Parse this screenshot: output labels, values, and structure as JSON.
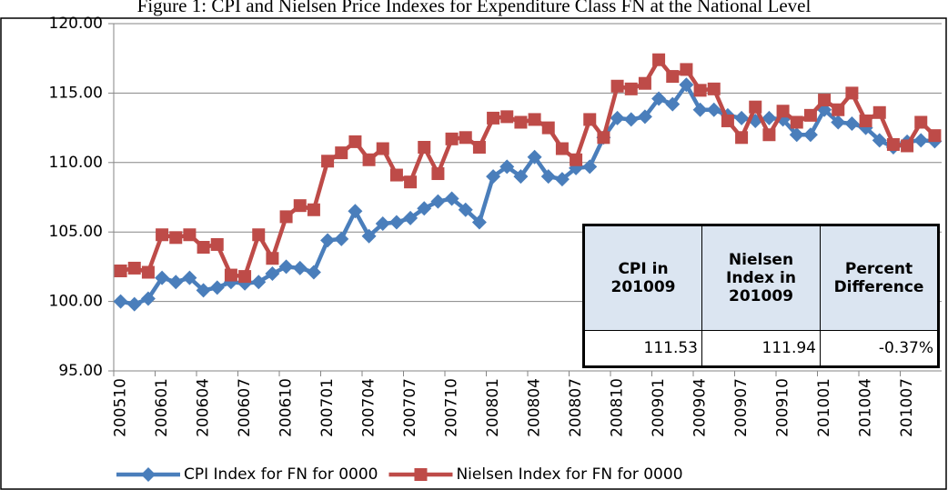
{
  "chart_data": {
    "type": "line",
    "title": "Figure 1: CPI and Nielsen Price Indexes for Expenditure Class FN at the National Level",
    "categories": [
      "200510",
      null,
      null,
      "200601",
      null,
      null,
      "200604",
      null,
      null,
      "200607",
      null,
      null,
      "200610",
      null,
      null,
      "200701",
      null,
      null,
      "200704",
      null,
      null,
      "200707",
      null,
      null,
      "200710",
      null,
      null,
      "200801",
      null,
      null,
      "200804",
      null,
      null,
      "200807",
      null,
      null,
      "200810",
      null,
      null,
      "200901",
      null,
      null,
      "200904",
      null,
      null,
      "200907",
      null,
      null,
      "200910",
      null,
      null,
      "201001",
      null,
      null,
      "201004",
      null,
      null,
      "201007",
      null,
      null
    ],
    "series": [
      {
        "name": "CPI Index for FN for 0000",
        "color": "#4a7ebb",
        "marker": "diamond",
        "values": [
          100.0,
          99.8,
          100.2,
          101.7,
          101.4,
          101.7,
          100.8,
          101.0,
          101.4,
          101.3,
          101.4,
          102.0,
          102.5,
          102.4,
          102.1,
          104.4,
          104.5,
          106.5,
          104.7,
          105.6,
          105.7,
          106.0,
          106.7,
          107.2,
          107.4,
          106.6,
          105.7,
          109.0,
          109.7,
          109.0,
          110.4,
          109.0,
          108.8,
          109.6,
          109.7,
          111.8,
          113.2,
          113.1,
          113.3,
          114.6,
          114.2,
          115.6,
          113.8,
          113.8,
          113.4,
          113.2,
          113.0,
          113.2,
          113.1,
          112.0,
          112.0,
          113.8,
          112.9,
          112.8,
          112.5,
          111.6,
          111.1,
          111.5,
          111.6,
          111.53
        ]
      },
      {
        "name": "Nielsen Index for FN for 0000",
        "color": "#be4b48",
        "marker": "square",
        "values": [
          102.2,
          102.4,
          102.1,
          104.8,
          104.6,
          104.8,
          103.9,
          104.1,
          101.9,
          101.8,
          104.8,
          103.1,
          106.1,
          106.9,
          106.6,
          110.1,
          110.7,
          111.5,
          110.2,
          111.0,
          109.1,
          108.6,
          111.1,
          109.2,
          111.7,
          111.8,
          111.1,
          113.2,
          113.3,
          112.9,
          113.1,
          112.5,
          111.0,
          110.2,
          113.1,
          111.8,
          115.5,
          115.3,
          115.7,
          117.4,
          116.2,
          116.7,
          115.2,
          115.3,
          113.0,
          111.8,
          114.0,
          112.0,
          113.7,
          112.9,
          113.4,
          114.5,
          113.8,
          115.0,
          113.0,
          113.6,
          111.3,
          111.2,
          112.9,
          111.94
        ]
      }
    ],
    "ylim": [
      95,
      120
    ],
    "yticks": [
      {
        "value": 95,
        "label": "95.00"
      },
      {
        "value": 100,
        "label": "100.00"
      },
      {
        "value": 105,
        "label": "105.00"
      },
      {
        "value": 110,
        "label": "110.00"
      },
      {
        "value": 115,
        "label": "115.00"
      },
      {
        "value": 120,
        "label": "120.00"
      }
    ],
    "grid": true,
    "legend": "bottom",
    "table": {
      "header": [
        "CPI in 201009",
        "Nielsen Index in 201009",
        "Percent Difference"
      ],
      "rows": [
        [
          "111.53",
          "111.94",
          "-0.37%"
        ]
      ]
    }
  }
}
